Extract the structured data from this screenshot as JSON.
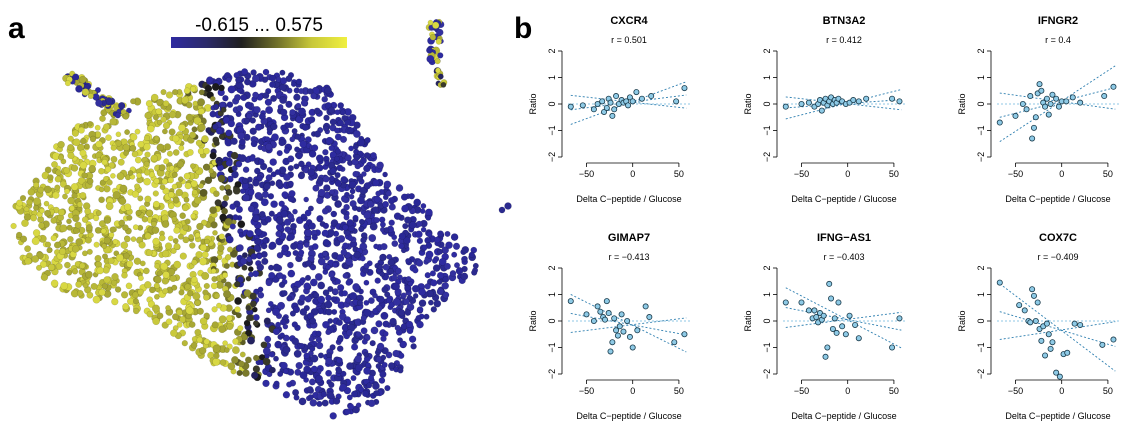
{
  "panel_a": {
    "letter": "a",
    "colorbar": {
      "label": "-0.615 ... 0.575",
      "min": -0.615,
      "max": 0.575,
      "colors": [
        "#2e2aa0",
        "#2b2a6a",
        "#1f1f1f",
        "#6f6f2a",
        "#c8c83a",
        "#f0f040"
      ]
    }
  },
  "panel_b": {
    "letter": "b"
  },
  "colors": {
    "point_fill": "#8ecae6",
    "point_stroke": "#1a3a4a",
    "fit_line": "#2e7fb0",
    "zero_line": "#8fc7e6"
  },
  "chart_data": [
    {
      "type": "scatter",
      "title": "CXCR4",
      "subtitle": "r = 0.501",
      "xlabel": "Delta C−peptide / Glucose",
      "ylabel": "Ratio",
      "xlim": [
        -70,
        62
      ],
      "ylim": [
        -2,
        2
      ],
      "xticks": [
        "−50",
        "0",
        "50"
      ],
      "yticks": [
        "−2",
        "−1",
        "0",
        "1",
        "2"
      ],
      "fit": {
        "slope": 0.0045,
        "intercept": 0.08,
        "ci_spread": 0.0055
      },
      "x": [
        -67,
        -54,
        -42,
        -38,
        -33,
        -31,
        -28,
        -26,
        -24,
        -22,
        -20,
        -18,
        -15,
        -12,
        -10,
        -7,
        -5,
        -3,
        0,
        4,
        10,
        20,
        47,
        56
      ],
      "y": [
        -0.1,
        -0.05,
        -0.2,
        0.0,
        0.1,
        -0.3,
        -0.15,
        0.2,
        0.05,
        -0.45,
        -0.2,
        0.3,
        0.0,
        0.15,
        0.05,
        0.1,
        -0.05,
        0.25,
        0.1,
        0.45,
        0.2,
        0.3,
        0.1,
        0.6
      ]
    },
    {
      "type": "scatter",
      "title": "BTN3A2",
      "subtitle": "r = 0.412",
      "xlabel": "Delta C−peptide / Glucose",
      "ylabel": "Ratio",
      "xlim": [
        -70,
        62
      ],
      "ylim": [
        -2,
        2
      ],
      "xticks": [
        "−50",
        "0",
        "50"
      ],
      "yticks": [
        "−2",
        "−1",
        "0",
        "1",
        "2"
      ],
      "fit": {
        "slope": 0.0025,
        "intercept": 0.02,
        "ci_spread": 0.0035
      },
      "x": [
        -67,
        -50,
        -42,
        -36,
        -32,
        -30,
        -28,
        -26,
        -24,
        -22,
        -20,
        -18,
        -16,
        -14,
        -12,
        -10,
        -6,
        -2,
        2,
        6,
        12,
        20,
        48,
        56
      ],
      "y": [
        -0.1,
        0.0,
        0.05,
        -0.1,
        0.0,
        0.15,
        -0.25,
        0.05,
        0.2,
        -0.05,
        0.1,
        0.25,
        0.0,
        0.15,
        0.05,
        0.2,
        0.1,
        0.0,
        0.05,
        0.15,
        0.1,
        0.2,
        0.2,
        0.1
      ]
    },
    {
      "type": "scatter",
      "title": "IFNGR2",
      "subtitle": "r = 0.4",
      "xlabel": "Delta C−peptide / Glucose",
      "ylabel": "Ratio",
      "xlim": [
        -70,
        62
      ],
      "ylim": [
        -2,
        2
      ],
      "xticks": [
        "−50",
        "0",
        "50"
      ],
      "yticks": [
        "−2",
        "−1",
        "0",
        "1",
        "2"
      ],
      "fit": {
        "slope": 0.009,
        "intercept": 0.1,
        "ci_spread": 0.011
      },
      "x": [
        -67,
        -50,
        -42,
        -38,
        -34,
        -32,
        -30,
        -28,
        -26,
        -24,
        -22,
        -20,
        -18,
        -16,
        -14,
        -12,
        -10,
        -6,
        -3,
        0,
        5,
        12,
        20,
        46,
        56
      ],
      "y": [
        -0.7,
        -0.45,
        0.0,
        -0.2,
        0.3,
        -1.3,
        -0.9,
        -0.5,
        0.4,
        0.75,
        0.5,
        0.05,
        -0.1,
        0.2,
        -0.4,
        0.0,
        0.35,
        0.2,
        -0.1,
        0.1,
        0.1,
        0.25,
        0.05,
        0.3,
        0.65
      ]
    },
    {
      "type": "scatter",
      "title": "GIMAP7",
      "subtitle": "r = −0.413",
      "xlabel": "Delta C−peptide / Glucose",
      "ylabel": "Ratio",
      "xlim": [
        -70,
        62
      ],
      "ylim": [
        -2,
        2
      ],
      "xticks": [
        "−50",
        "0",
        "50"
      ],
      "yticks": [
        "−2",
        "−1",
        "0",
        "1",
        "2"
      ],
      "fit": {
        "slope": -0.0065,
        "intercept": -0.15,
        "ci_spread": 0.008
      },
      "x": [
        -67,
        -50,
        -42,
        -38,
        -35,
        -32,
        -30,
        -28,
        -26,
        -24,
        -22,
        -20,
        -18,
        -16,
        -14,
        -12,
        -10,
        -6,
        -3,
        0,
        5,
        14,
        18,
        45,
        56
      ],
      "y": [
        0.75,
        0.25,
        0.0,
        0.55,
        0.35,
        0.15,
        0.05,
        0.75,
        0.3,
        -1.15,
        -0.8,
        0.1,
        -0.35,
        -0.55,
        -0.2,
        0.25,
        -0.4,
        0.0,
        -0.6,
        -1.0,
        -0.35,
        0.55,
        0.15,
        -0.8,
        -0.5
      ]
    },
    {
      "type": "scatter",
      "title": "IFNG−AS1",
      "subtitle": "r = −0.403",
      "xlabel": "Delta C−peptide / Glucose",
      "ylabel": "Ratio",
      "xlim": [
        -70,
        62
      ],
      "ylim": [
        -2,
        2
      ],
      "xticks": [
        "−50",
        "0",
        "50"
      ],
      "yticks": [
        "−2",
        "−1",
        "0",
        "1",
        "2"
      ],
      "fit": {
        "slope": -0.0068,
        "intercept": 0.05,
        "ci_spread": 0.0085
      },
      "x": [
        -67,
        -50,
        -42,
        -38,
        -36,
        -34,
        -32,
        -30,
        -28,
        -26,
        -24,
        -22,
        -20,
        -18,
        -16,
        -14,
        -12,
        -10,
        -6,
        -2,
        2,
        8,
        12,
        48,
        56
      ],
      "y": [
        0.7,
        0.7,
        0.4,
        0.1,
        0.4,
        0.15,
        -0.05,
        0.3,
        0.05,
        0.2,
        -1.35,
        -1.0,
        1.4,
        0.85,
        -0.3,
        0.1,
        -0.45,
        0.7,
        -0.2,
        -0.5,
        0.2,
        -0.15,
        -0.65,
        -1.0,
        0.1
      ]
    },
    {
      "type": "scatter",
      "title": "COX7C",
      "subtitle": "r = −0.409",
      "xlabel": "Delta C−peptide / Glucose",
      "ylabel": "Ratio",
      "xlim": [
        -70,
        62
      ],
      "ylim": [
        -2,
        2
      ],
      "xticks": [
        "−50",
        "0",
        "50"
      ],
      "yticks": [
        "−2",
        "−1",
        "0",
        "1",
        "2"
      ],
      "fit": {
        "slope": -0.0105,
        "intercept": -0.35,
        "ci_spread": 0.013
      },
      "x": [
        -67,
        -46,
        -40,
        -36,
        -34,
        -32,
        -30,
        -28,
        -26,
        -24,
        -22,
        -20,
        -18,
        -16,
        -14,
        -12,
        -10,
        -6,
        -2,
        2,
        6,
        14,
        20,
        44,
        56
      ],
      "y": [
        1.45,
        0.6,
        0.4,
        0.0,
        -0.05,
        1.2,
        0.95,
        0.0,
        0.7,
        -0.3,
        -0.75,
        -0.2,
        -1.3,
        -0.1,
        -0.5,
        -1.05,
        -0.8,
        -1.95,
        -2.1,
        -1.25,
        -1.2,
        -0.1,
        -0.15,
        -0.9,
        -0.7
      ]
    }
  ]
}
